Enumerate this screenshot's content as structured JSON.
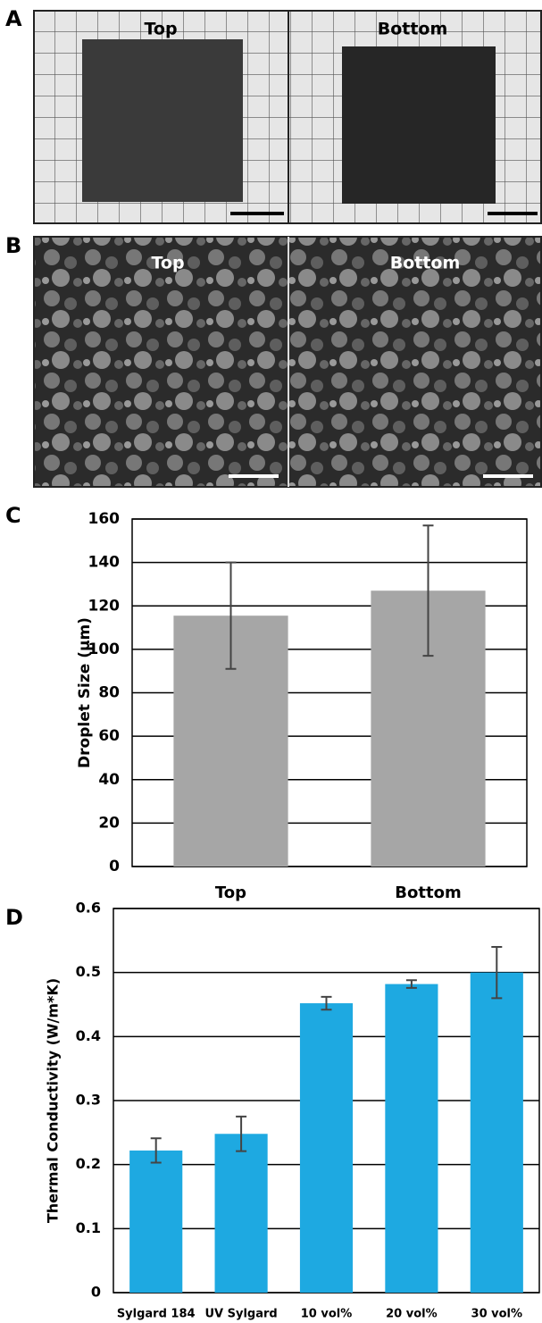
{
  "panels": {
    "a": {
      "label": "A",
      "photos": [
        "Top",
        "Bottom"
      ]
    },
    "b": {
      "label": "B",
      "photos": [
        "Top",
        "Bottom"
      ]
    },
    "c": {
      "label": "C"
    },
    "d": {
      "label": "D"
    }
  },
  "chart_data": [
    {
      "type": "bar",
      "y_label": "Droplet Size (μm)",
      "categories": [
        "Top",
        "Bottom"
      ],
      "values": [
        115.5,
        127
      ],
      "errors": [
        24.5,
        30
      ],
      "color": "#a6a6a6",
      "ylim": [
        0,
        160
      ],
      "yticks": [
        0,
        20,
        40,
        60,
        80,
        100,
        120,
        140,
        160
      ],
      "grid": true
    },
    {
      "type": "bar",
      "y_label": "Thermal Conductivity (W/m*K)",
      "categories": [
        "Sylgard 184",
        "UV Sylgard",
        "10 vol%",
        "20 vol%",
        "30 vol%"
      ],
      "values": [
        0.222,
        0.248,
        0.452,
        0.482,
        0.5
      ],
      "errors": [
        0.019,
        0.027,
        0.01,
        0.006,
        0.04
      ],
      "color": "#1ea9e1",
      "ylim": [
        0,
        0.6
      ],
      "yticks": [
        0,
        0.1,
        0.2,
        0.3,
        0.4,
        0.5,
        0.6
      ],
      "grid": true
    }
  ]
}
